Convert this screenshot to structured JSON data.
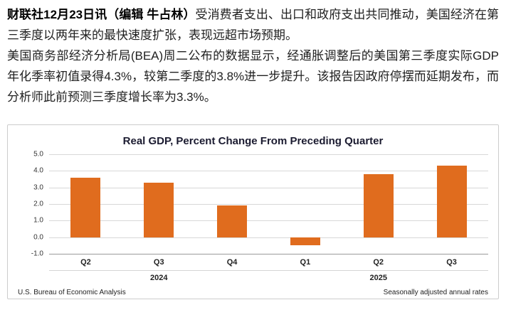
{
  "article": {
    "p1_bold": "财联社12月23日讯（编辑 牛占林）",
    "p1_rest": "受消费者支出、出口和政府支出共同推动，美国经济在第三季度以两年来的最快速度扩张，表现远超市场预期。",
    "p2": "美国商务部经济分析局(BEA)周二公布的数据显示，经通胀调整后的美国第三季度实际GDP年化季率初值录得4.3%，较第二季度的3.8%进一步提升。该报告因政府停摆而延期发布，而分析师此前预测三季度增长率为3.3%。"
  },
  "chart_data": {
    "type": "bar",
    "title": "Real GDP, Percent Change From Preceding Quarter",
    "categories": [
      "Q2",
      "Q3",
      "Q4",
      "Q1",
      "Q2",
      "Q3"
    ],
    "values": [
      3.6,
      3.3,
      1.9,
      -0.5,
      3.8,
      4.3
    ],
    "year_groups": [
      {
        "label": "2024",
        "start": 0,
        "end": 2
      },
      {
        "label": "2025",
        "start": 3,
        "end": 5
      }
    ],
    "ylim": [
      -1.0,
      5.0
    ],
    "yticks": [
      5.0,
      4.0,
      3.0,
      2.0,
      1.0,
      0.0,
      -1.0
    ],
    "bar_color": "#e06c1e",
    "gridline_color": "#d8d8d8",
    "source_left": "U.S. Bureau of Economic Analysis",
    "note_right": "Seasonally adjusted annual rates",
    "grid": true,
    "legend": "none"
  }
}
